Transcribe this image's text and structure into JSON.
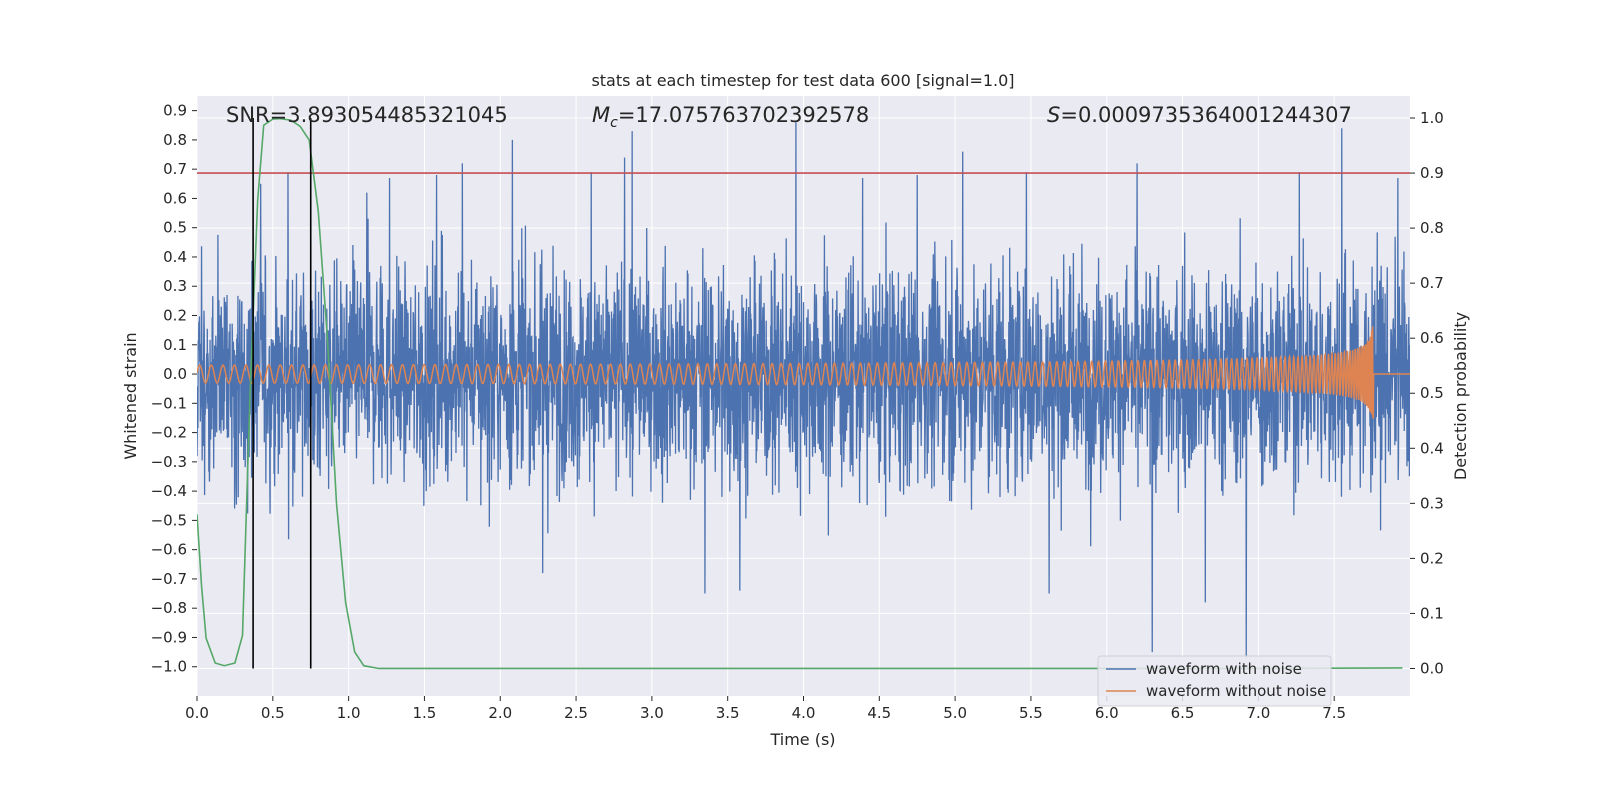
{
  "chart_data": {
    "type": "line",
    "title": "stats at each timestep for test data 600 [signal=1.0]",
    "xlabel": "Time (s)",
    "ylabel_left": "Whitened strain",
    "ylabel_right": "Detection probability",
    "xlim": [
      0.0,
      8.0
    ],
    "ylim_left": [
      -1.1,
      0.95
    ],
    "ylim_right": [
      -0.05,
      1.04
    ],
    "xticks": [
      "0.0",
      "0.5",
      "1.0",
      "1.5",
      "2.0",
      "2.5",
      "3.0",
      "3.5",
      "4.0",
      "4.5",
      "5.0",
      "5.5",
      "6.0",
      "6.5",
      "7.0",
      "7.5"
    ],
    "xtick_values": [
      0.0,
      0.5,
      1.0,
      1.5,
      2.0,
      2.5,
      3.0,
      3.5,
      4.0,
      4.5,
      5.0,
      5.5,
      6.0,
      6.5,
      7.0,
      7.5
    ],
    "yticks_left": [
      "0.9",
      "0.8",
      "0.7",
      "0.6",
      "0.5",
      "0.4",
      "0.3",
      "0.2",
      "0.1",
      "0.0",
      "−0.1",
      "−0.2",
      "−0.3",
      "−0.4",
      "−0.5",
      "−0.6",
      "−0.7",
      "−0.8",
      "−0.9",
      "−1.0"
    ],
    "ytick_values_left": [
      0.9,
      0.8,
      0.7,
      0.6,
      0.5,
      0.4,
      0.3,
      0.2,
      0.1,
      0.0,
      -0.1,
      -0.2,
      -0.3,
      -0.4,
      -0.5,
      -0.6,
      -0.7,
      -0.8,
      -0.9,
      -1.0
    ],
    "yticks_right": [
      "1.0",
      "0.9",
      "0.8",
      "0.7",
      "0.6",
      "0.5",
      "0.4",
      "0.3",
      "0.2",
      "0.1",
      "0.0"
    ],
    "ytick_values_right": [
      1.0,
      0.9,
      0.8,
      0.7,
      0.6,
      0.5,
      0.4,
      0.3,
      0.2,
      0.1,
      0.0
    ],
    "annotations": {
      "snr": "SNR=3.893054485321045",
      "mc_prefix": "M",
      "mc_sub": "c",
      "mc_value": "=17.075763702392578",
      "s_prefix": "S",
      "s_value": "=0.0009735364001244307"
    },
    "threshold_right": 0.9,
    "vlines_x": [
      0.37,
      0.75
    ],
    "series": [
      {
        "name": "waveform with noise",
        "color": "#4c72b0",
        "kind": "noise",
        "envelope_typical": [
          -0.45,
          0.45
        ],
        "peaks": [
          {
            "x": 0.42,
            "y": 0.65
          },
          {
            "x": 0.6,
            "y": 0.69
          },
          {
            "x": 0.75,
            "y": -0.56
          },
          {
            "x": 1.12,
            "y": 0.62
          },
          {
            "x": 1.27,
            "y": 0.67
          },
          {
            "x": 1.58,
            "y": 0.68
          },
          {
            "x": 1.75,
            "y": 0.72
          },
          {
            "x": 2.08,
            "y": 0.8
          },
          {
            "x": 2.28,
            "y": -0.68
          },
          {
            "x": 2.6,
            "y": 0.69
          },
          {
            "x": 2.82,
            "y": 0.74
          },
          {
            "x": 2.87,
            "y": 0.83
          },
          {
            "x": 3.35,
            "y": -0.75
          },
          {
            "x": 3.58,
            "y": -0.74
          },
          {
            "x": 3.95,
            "y": 0.86
          },
          {
            "x": 4.39,
            "y": 0.67
          },
          {
            "x": 4.75,
            "y": 0.68
          },
          {
            "x": 5.05,
            "y": 0.76
          },
          {
            "x": 5.47,
            "y": 0.69
          },
          {
            "x": 5.62,
            "y": -0.75
          },
          {
            "x": 6.2,
            "y": 0.72
          },
          {
            "x": 6.3,
            "y": -0.95
          },
          {
            "x": 6.65,
            "y": -0.78
          },
          {
            "x": 6.92,
            "y": -0.97
          },
          {
            "x": 7.27,
            "y": 0.69
          },
          {
            "x": 7.55,
            "y": 0.84
          },
          {
            "x": 7.92,
            "y": 0.67
          }
        ]
      },
      {
        "name": "waveform without noise",
        "color": "#dd8452",
        "kind": "chirp",
        "merger_time": 7.76,
        "peak_amplitude": 0.17
      },
      {
        "name": "detection probability",
        "color": "#55a868",
        "axis": "right",
        "x": [
          0.0,
          0.03,
          0.06,
          0.12,
          0.18,
          0.25,
          0.3,
          0.35,
          0.4,
          0.44,
          0.5,
          0.55,
          0.62,
          0.68,
          0.74,
          0.8,
          0.86,
          0.92,
          0.98,
          1.04,
          1.1,
          1.2,
          1.5,
          3.0,
          5.0,
          7.0,
          7.95
        ],
        "y": [
          0.28,
          0.15,
          0.055,
          0.01,
          0.005,
          0.01,
          0.06,
          0.5,
          0.85,
          0.987,
          0.998,
          0.999,
          0.996,
          0.985,
          0.96,
          0.83,
          0.6,
          0.3,
          0.12,
          0.03,
          0.005,
          0.0,
          0.0,
          0.0,
          0.0,
          0.0,
          0.001
        ]
      }
    ],
    "legend": {
      "placement": "lower-right",
      "entries": [
        "waveform with noise",
        "waveform without noise"
      ]
    },
    "colors": {
      "axes_bg": "#eaeaf2",
      "grid": "#ffffff",
      "threshold": "#c44e52",
      "vline": "#000000"
    },
    "grid": true
  }
}
